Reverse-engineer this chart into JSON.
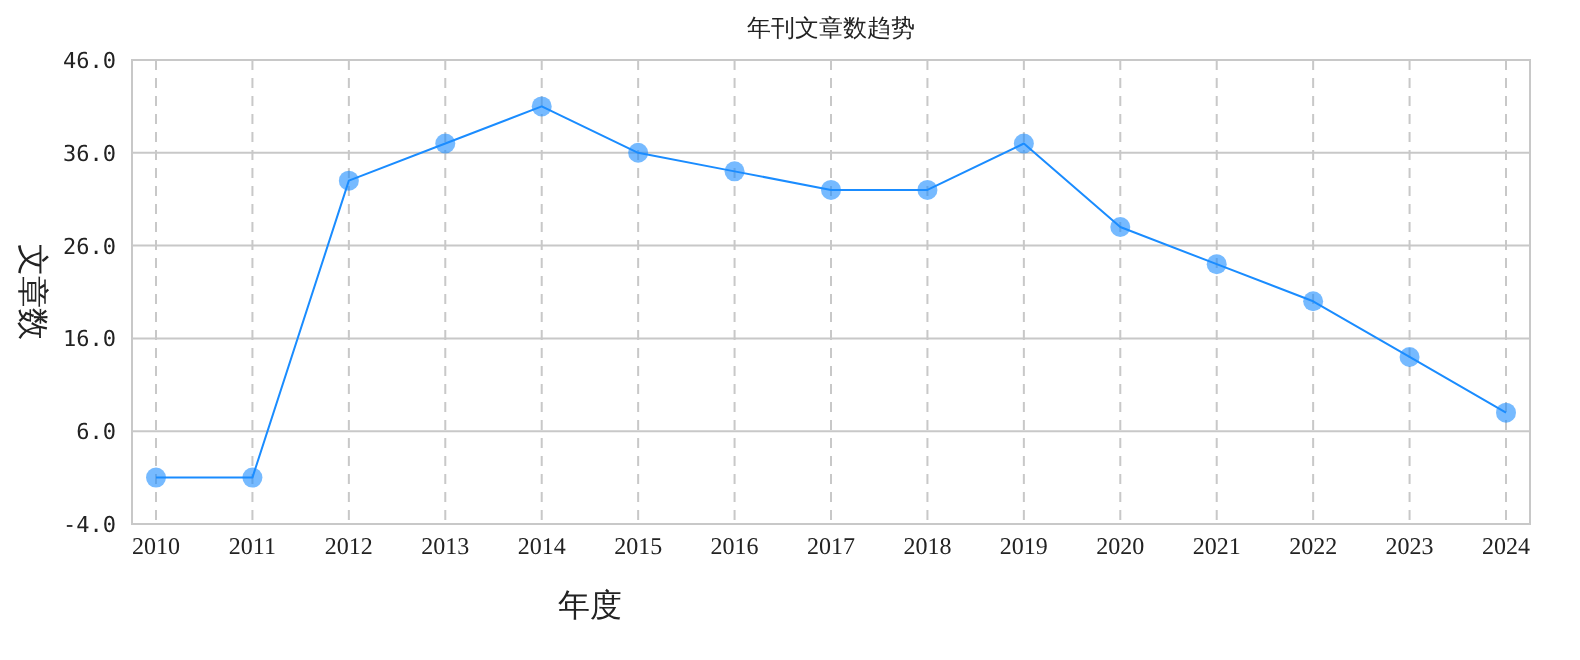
{
  "chart_data": {
    "type": "line",
    "title": "年刊文章数趋势",
    "xlabel": "年度",
    "ylabel": "文章数",
    "categories": [
      "2010",
      "2011",
      "2012",
      "2013",
      "2014",
      "2015",
      "2016",
      "2017",
      "2018",
      "2019",
      "2020",
      "2021",
      "2022",
      "2023",
      "2024"
    ],
    "series": [
      {
        "color": "#1a8cff",
        "values": [
          1,
          1,
          33,
          37,
          41,
          36,
          34,
          32,
          32,
          37,
          28,
          24,
          20,
          14,
          8
        ]
      }
    ],
    "ylim": [
      -4,
      46
    ],
    "yticks": [
      {
        "value": -4,
        "label": "-4.0"
      },
      {
        "value": 6,
        "label": "6.0"
      },
      {
        "value": 16,
        "label": "16.0"
      },
      {
        "value": 26,
        "label": "26.0"
      },
      {
        "value": 36,
        "label": "36.0"
      },
      {
        "value": 46,
        "label": "46.0"
      }
    ],
    "grid": true,
    "marker": "circle",
    "line_style": "solid"
  }
}
